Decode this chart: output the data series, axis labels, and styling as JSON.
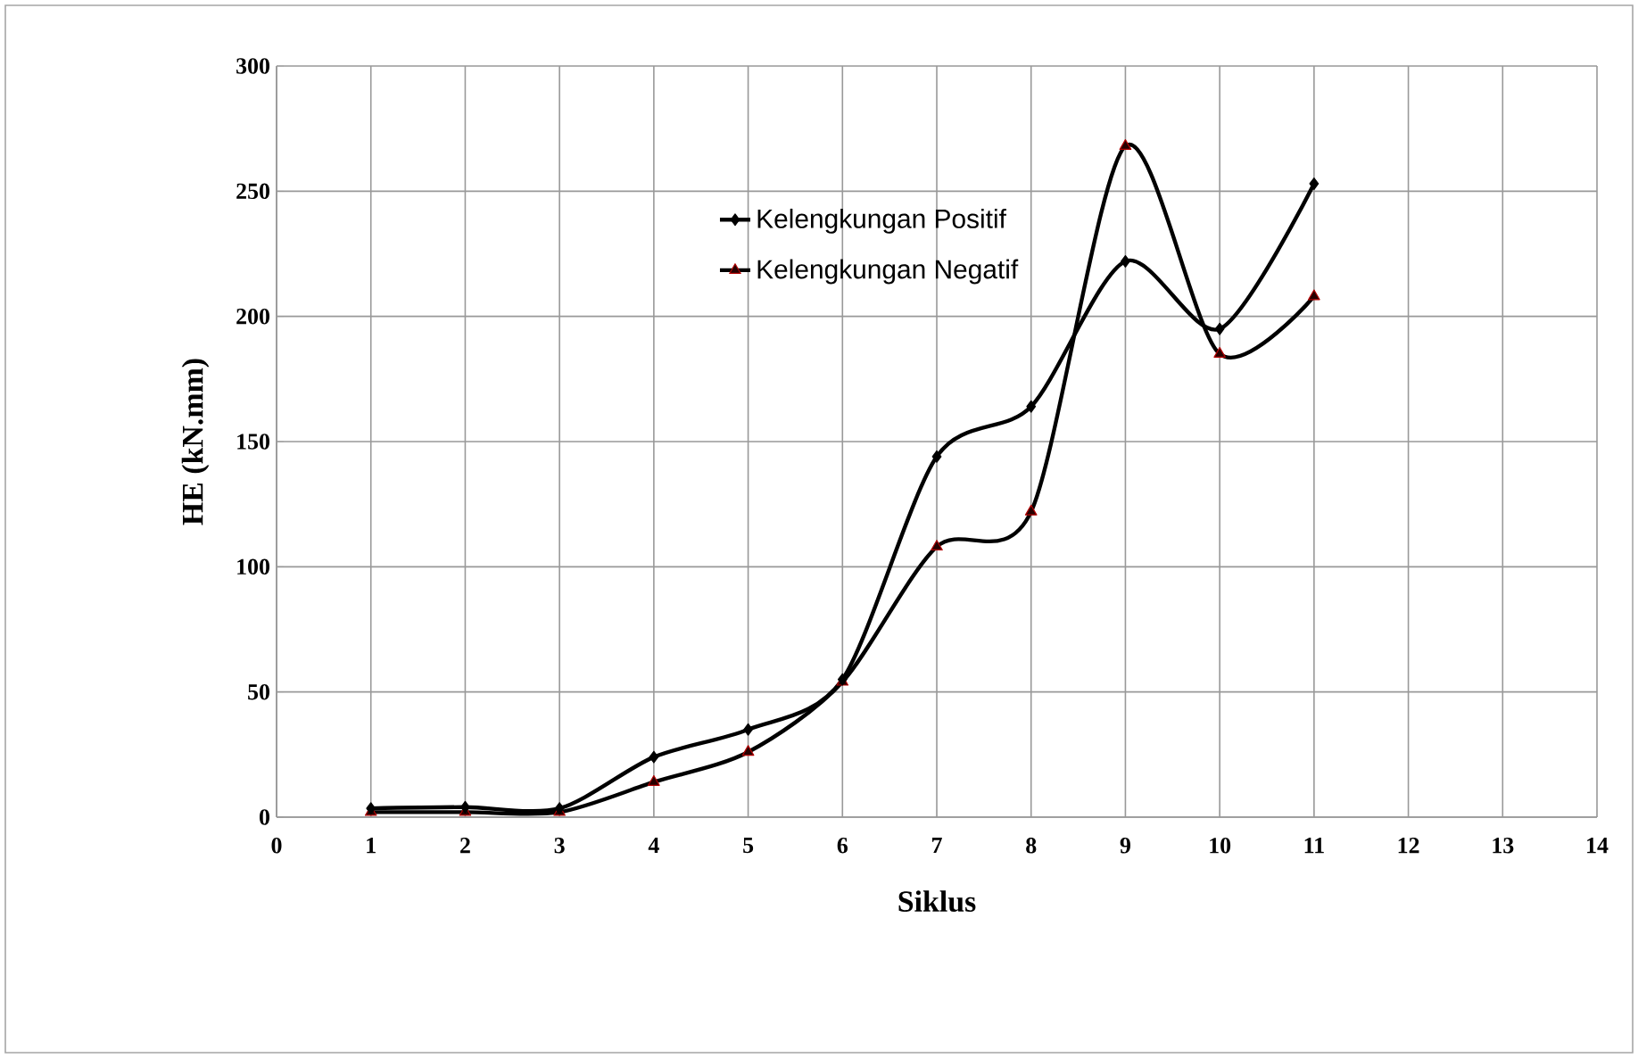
{
  "chart_data": {
    "type": "line",
    "xlabel": "Siklus",
    "ylabel": "HE (kN.mm)",
    "x": [
      1,
      2,
      3,
      4,
      5,
      6,
      7,
      8,
      9,
      10,
      11
    ],
    "series": [
      {
        "name": "Kelengkungan Positif",
        "color": "#000000",
        "marker": "diamond",
        "values": [
          3.5,
          4,
          3.5,
          24,
          35,
          55,
          144,
          164,
          222,
          195,
          253
        ]
      },
      {
        "name": "Kelengkungan Negatif",
        "color": "#000000",
        "marker": "triangle",
        "values": [
          2,
          2,
          2,
          14,
          26,
          54,
          108,
          122,
          268,
          185,
          208
        ]
      }
    ],
    "xlim": [
      0,
      14
    ],
    "xticks": [
      0,
      1,
      2,
      3,
      4,
      5,
      6,
      7,
      8,
      9,
      10,
      11,
      12,
      13,
      14
    ],
    "ylim": [
      0,
      300
    ],
    "yticks": [
      0,
      50,
      100,
      150,
      200,
      250,
      300
    ],
    "grid": true,
    "legend": "top"
  }
}
